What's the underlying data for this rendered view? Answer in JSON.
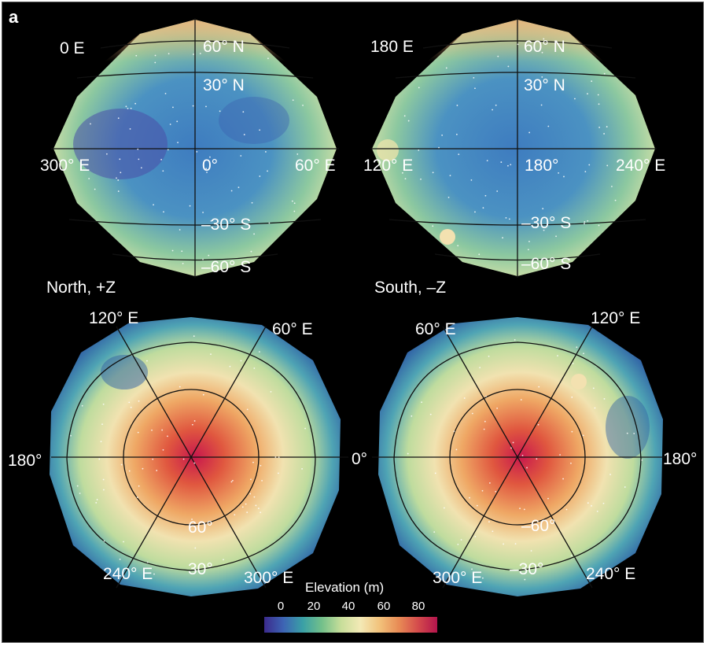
{
  "panel_letter": "a",
  "views": {
    "top_left": {
      "view_label": "0 E",
      "lat_60n": "60° N",
      "lat_30n": "30° N",
      "lon_left": "300° E",
      "lon_center": "0°",
      "lon_right": "60° E",
      "lat_30s": "–30° S",
      "lat_60s": "–60° S"
    },
    "top_right": {
      "view_label": "180 E",
      "lat_60n": "60° N",
      "lat_30n": "30° N",
      "lon_left": "120° E",
      "lon_center": "180°",
      "lon_right": "240° E",
      "lat_30s": "–30° S",
      "lat_60s": "–60° S"
    },
    "bottom_left": {
      "view_label": "North, +Z",
      "lon_120": "120° E",
      "lon_60": "60° E",
      "lon_180": "180°",
      "lon_240": "240° E",
      "lon_300": "300° E",
      "lat_60": "60°",
      "lat_30": "30°"
    },
    "bottom_right": {
      "view_label": "South, –Z",
      "lon_60": "60° E",
      "lon_120": "120° E",
      "lon_0": "0°",
      "lon_180": "180°",
      "lon_300": "300° E",
      "lon_240": "240° E",
      "lat_60": "–60°",
      "lat_30": "–30°"
    }
  },
  "colorbar": {
    "title": "Elevation (m)",
    "ticks": [
      "0",
      "20",
      "40",
      "60",
      "80"
    ],
    "range": [
      0,
      80
    ],
    "colors": [
      "#3b2a8c",
      "#3d64b4",
      "#3aa0a6",
      "#73c08a",
      "#c8de9a",
      "#f3e9b6",
      "#f2c27b",
      "#e88b55",
      "#d44b4c",
      "#b3144d"
    ]
  }
}
